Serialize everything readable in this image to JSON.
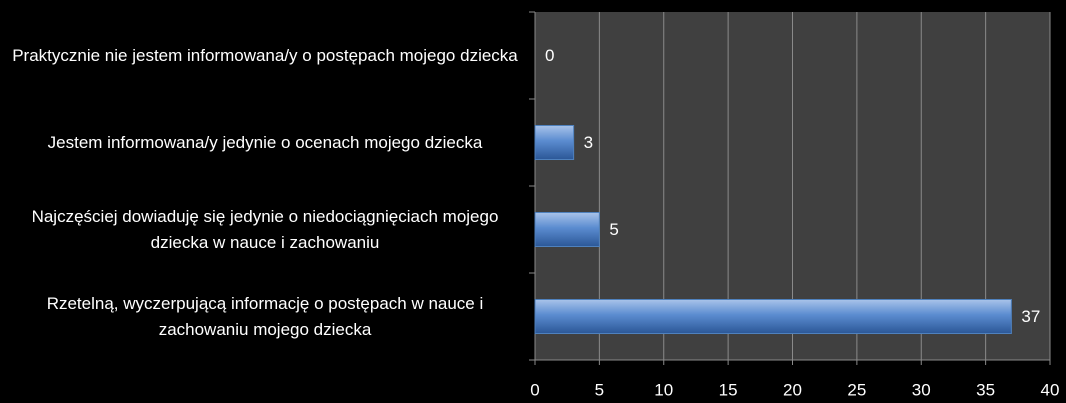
{
  "chart_data": {
    "type": "hbar",
    "categories": [
      "Praktycznie nie jestem informowana/y o postępach mojego dziecka",
      "Jestem informowana/y jedynie o ocenach mojego dziecka",
      "Najczęściej dowiaduję się jedynie o niedociągnięciach mojego dziecka w nauce i zachowaniu",
      "Rzetelną, wyczerpującą informację o postępach w nauce i zachowaniu mojego dziecka"
    ],
    "values": [
      0,
      3,
      5,
      37
    ],
    "color": "#4f81bd",
    "xlim": [
      0,
      40
    ],
    "xticks": [
      0,
      5,
      10,
      15,
      20,
      25,
      30,
      35,
      40
    ],
    "grid": true
  }
}
